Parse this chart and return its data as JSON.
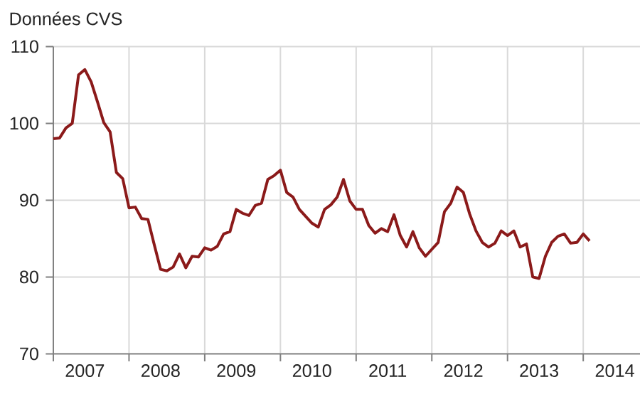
{
  "chart_data": {
    "type": "line",
    "ylabel": "Données CVS",
    "x": [
      "2007-01",
      "2007-02",
      "2007-03",
      "2007-04",
      "2007-05",
      "2007-06",
      "2007-07",
      "2007-08",
      "2007-09",
      "2007-10",
      "2007-11",
      "2007-12",
      "2008-01",
      "2008-02",
      "2008-03",
      "2008-04",
      "2008-05",
      "2008-06",
      "2008-07",
      "2008-08",
      "2008-09",
      "2008-10",
      "2008-11",
      "2008-12",
      "2009-01",
      "2009-02",
      "2009-03",
      "2009-04",
      "2009-05",
      "2009-06",
      "2009-07",
      "2009-08",
      "2009-09",
      "2009-10",
      "2009-11",
      "2009-12",
      "2010-01",
      "2010-02",
      "2010-03",
      "2010-04",
      "2010-05",
      "2010-06",
      "2010-07",
      "2010-08",
      "2010-09",
      "2010-10",
      "2010-11",
      "2010-12",
      "2011-01",
      "2011-02",
      "2011-03",
      "2011-04",
      "2011-05",
      "2011-06",
      "2011-07",
      "2011-08",
      "2011-09",
      "2011-10",
      "2011-11",
      "2011-12",
      "2012-01",
      "2012-02",
      "2012-03",
      "2012-04",
      "2012-05",
      "2012-06",
      "2012-07",
      "2012-08",
      "2012-09",
      "2012-10",
      "2012-11",
      "2012-12",
      "2013-01",
      "2013-02",
      "2013-03",
      "2013-04",
      "2013-05",
      "2013-06",
      "2013-07",
      "2013-08",
      "2013-09",
      "2013-10",
      "2013-11",
      "2013-12",
      "2014-01",
      "2014-02"
    ],
    "series": [
      {
        "color": "#8b1a1a",
        "values": [
          98.0,
          98.1,
          99.4,
          100.0,
          106.3,
          107.0,
          105.4,
          102.8,
          100.1,
          98.9,
          93.6,
          92.8,
          89.0,
          89.1,
          87.6,
          87.5,
          84.2,
          81.0,
          80.8,
          81.3,
          83.0,
          81.2,
          82.7,
          82.6,
          83.8,
          83.5,
          84.0,
          85.6,
          85.9,
          88.8,
          88.3,
          88.0,
          89.3,
          89.6,
          92.7,
          93.2,
          93.9,
          91.0,
          90.4,
          88.8,
          87.9,
          87.0,
          86.5,
          88.8,
          89.4,
          90.4,
          92.7,
          89.9,
          88.8,
          88.8,
          86.7,
          85.7,
          86.3,
          85.9,
          88.1,
          85.4,
          83.9,
          85.9,
          83.8,
          82.7,
          83.6,
          84.5,
          88.5,
          89.6,
          91.7,
          91.0,
          88.2,
          86.0,
          84.5,
          83.9,
          84.4,
          86.0,
          85.4,
          86.0,
          83.9,
          84.3,
          80.0,
          79.8,
          82.7,
          84.5,
          85.3,
          85.6,
          84.4,
          84.5,
          85.6,
          84.7
        ]
      }
    ],
    "xlim": [
      "2007",
      "2014-10"
    ],
    "xticks": [
      {
        "value": "2007",
        "label": null
      },
      {
        "value": "2007-06",
        "label": "2007"
      },
      {
        "value": "2008",
        "label": null
      },
      {
        "value": "2008-06",
        "label": "2008"
      },
      {
        "value": "2009",
        "label": null
      },
      {
        "value": "2009-06",
        "label": "2009"
      },
      {
        "value": "2010",
        "label": null
      },
      {
        "value": "2010-06",
        "label": "2010"
      },
      {
        "value": "2011",
        "label": null
      },
      {
        "value": "2011-06",
        "label": "2011"
      },
      {
        "value": "2012",
        "label": null
      },
      {
        "value": "2012-06",
        "label": "2012"
      },
      {
        "value": "2013",
        "label": null
      },
      {
        "value": "2013-06",
        "label": "2013"
      },
      {
        "value": "2014",
        "label": null
      },
      {
        "value": "2014-06",
        "label": "2014"
      }
    ],
    "ylim": [
      70,
      110
    ],
    "yticks": [
      70,
      80,
      90,
      100,
      110
    ],
    "grid": true,
    "line_style": "solid"
  }
}
